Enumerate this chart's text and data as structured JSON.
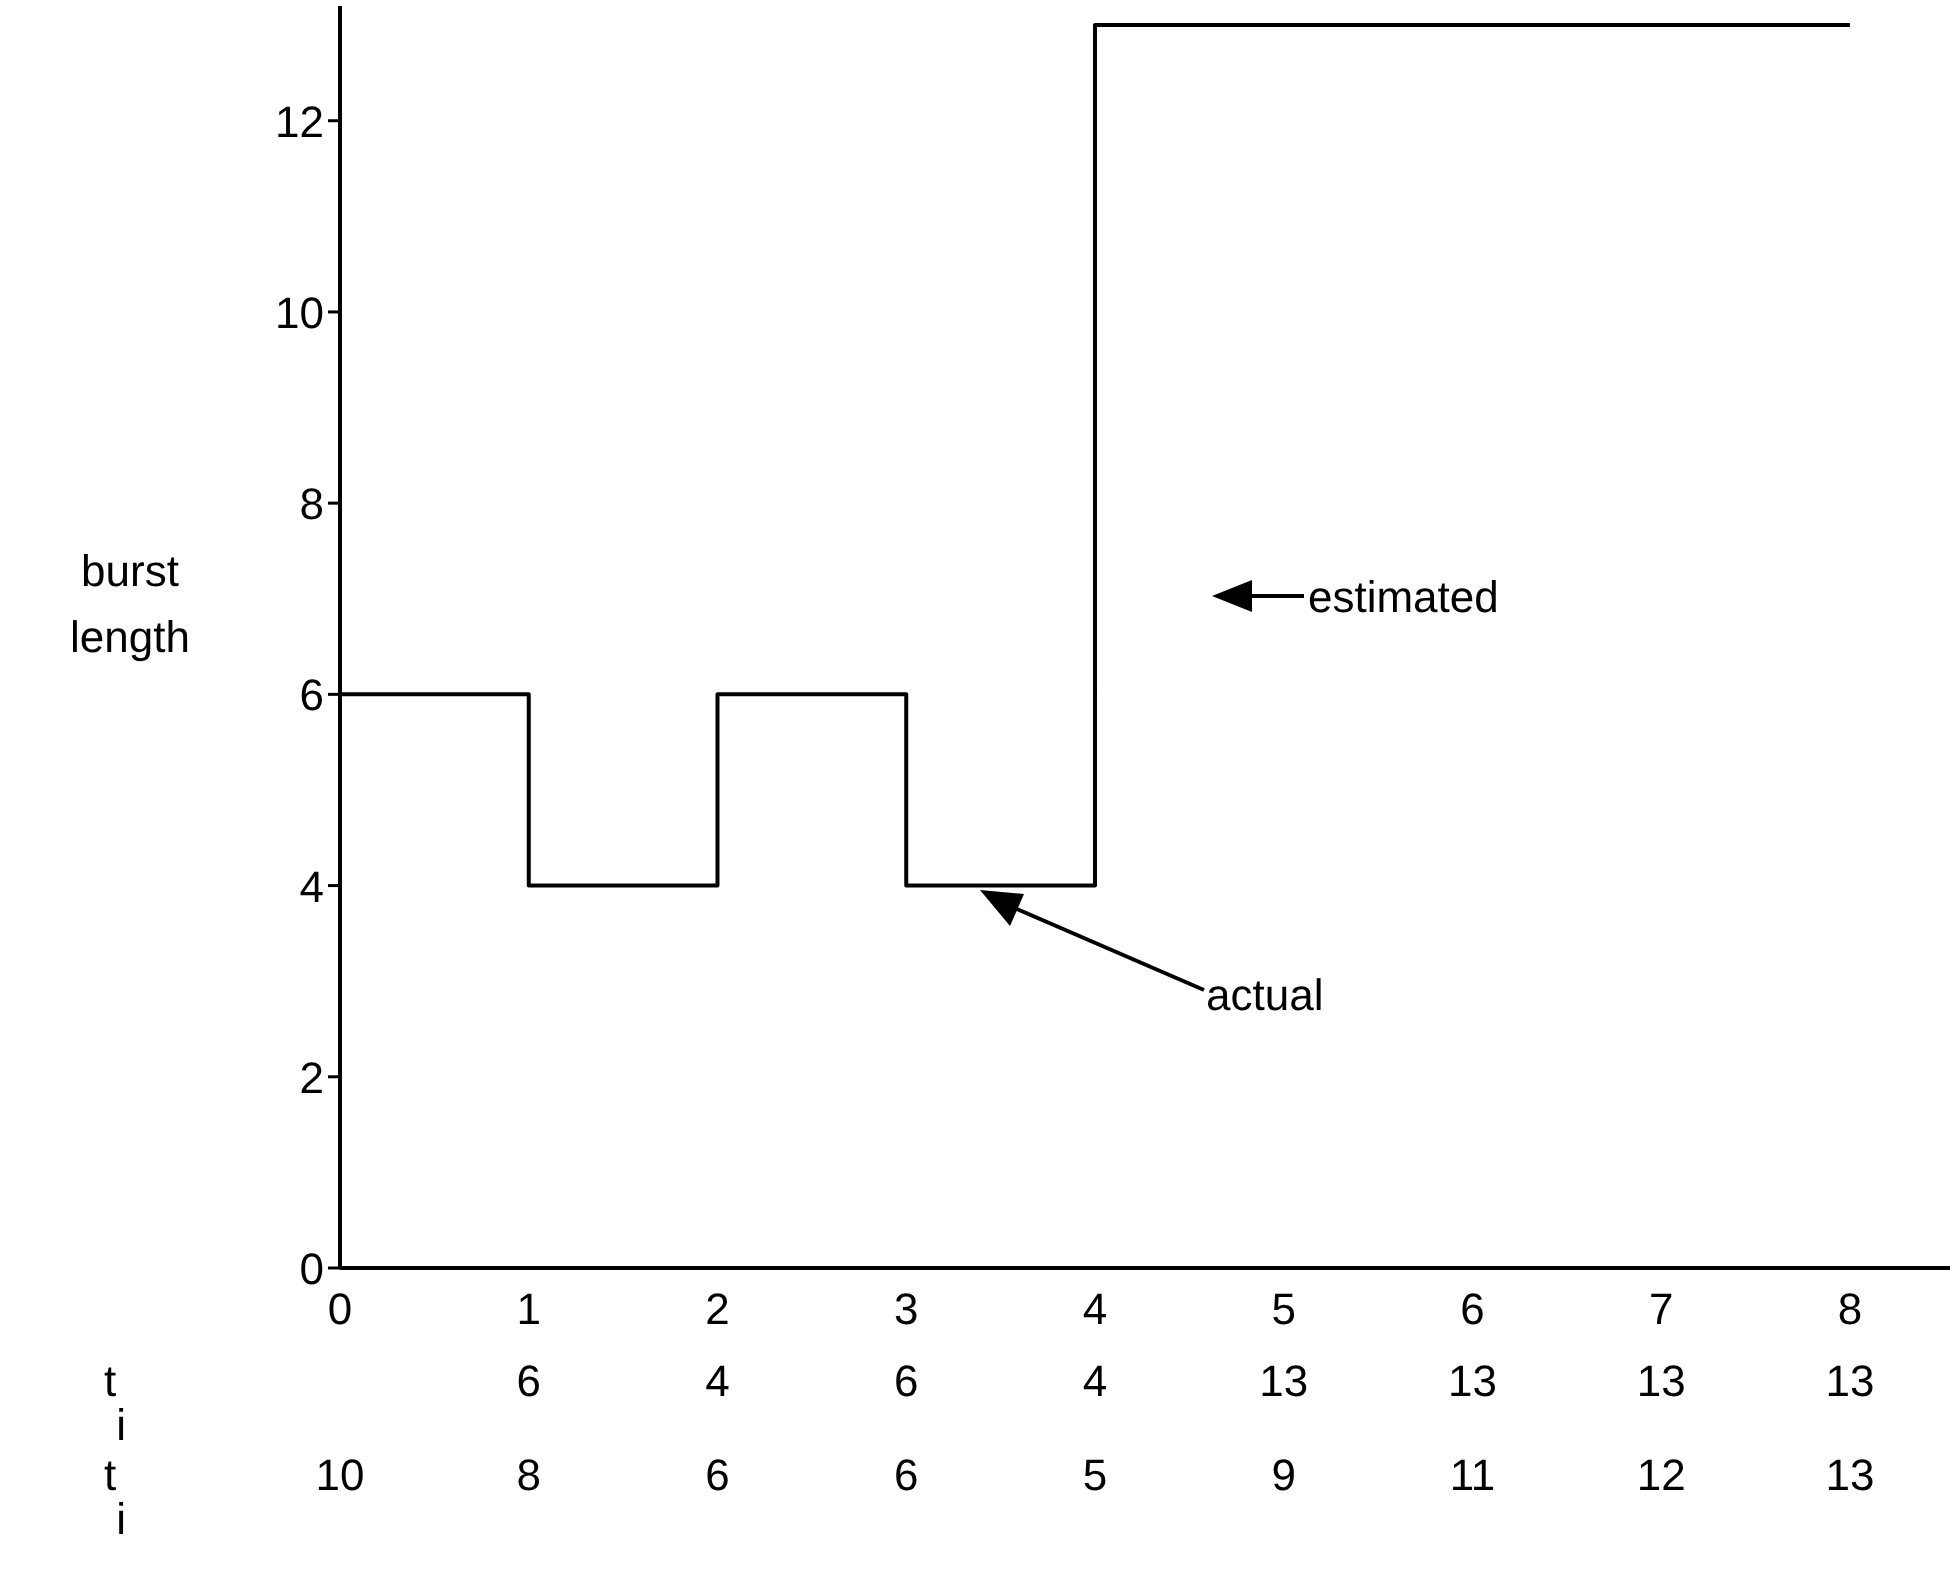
{
  "chart_data": {
    "type": "step",
    "ylabel": "burst length",
    "x": [
      0,
      1,
      2,
      3,
      4,
      5,
      6,
      7,
      8
    ],
    "series": [
      {
        "color": "#000000",
        "values": [
          6,
          6,
          4,
          6,
          4,
          13,
          13,
          13,
          13
        ]
      }
    ],
    "xlim": [
      0,
      8.53
    ],
    "xticks": [
      0,
      1,
      2,
      3,
      4,
      5,
      6,
      7,
      8
    ],
    "ylim": [
      0,
      13.2
    ],
    "yticks": [
      0,
      2,
      4,
      6,
      8,
      10,
      12
    ],
    "grid": false,
    "legend": false,
    "marker": "none",
    "line_style": "solid",
    "annotations": [
      "estimated",
      "actual",
      "t$_{i}$",
      "t$_{i}$",
      "6",
      "4",
      "6",
      "4",
      "13",
      "13",
      "13",
      "13",
      "10",
      "8",
      "6",
      "6",
      "5",
      "9",
      "11",
      "12",
      "13"
    ]
  }
}
